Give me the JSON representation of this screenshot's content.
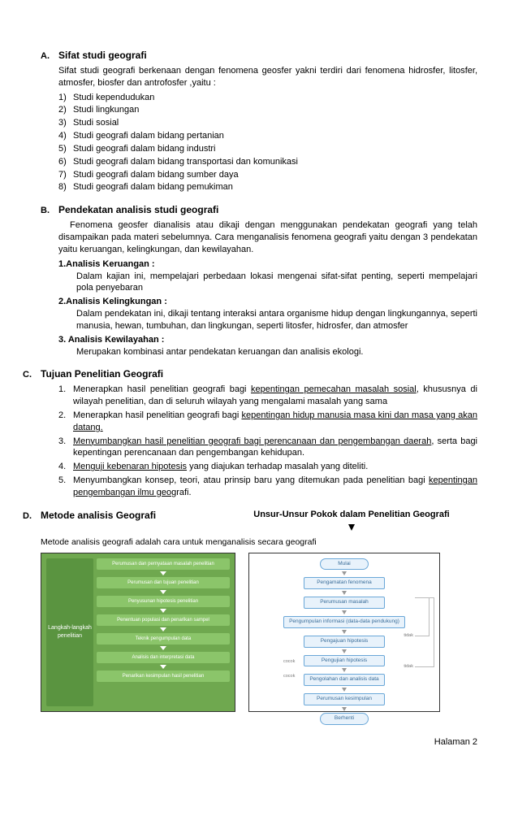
{
  "A": {
    "letter": "A.",
    "title": "Sifat studi geografi",
    "intro": "Sifat studi geografi berkenaan dengan fenomena geosfer yakni terdiri dari fenomena hidrosfer, litosfer, atmosfer, biosfer dan antrofosfer ,yaitu :",
    "items": [
      "Studi kependudukan",
      "Studi lingkungan",
      "Studi sosial",
      "Studi geografi dalam bidang pertanian",
      "Studi geografi dalam bidang industri",
      "Studi geografi dalam bidang transportasi dan komunikasi",
      "Studi geografi dalam bidang sumber daya",
      "Studi geografi dalam bidang pemukiman"
    ]
  },
  "B": {
    "letter": "B.",
    "title": "Pendekatan analisis studi geografi",
    "intro": "Fenomena geosfer dianalisis atau dikaji dengan menggunakan pendekatan geografi yang telah disampaikan pada materi sebelumnya. Cara menganalisis fenomena geografi yaitu dengan 3 pendekatan yaitu keruangan, kelingkungan, dan kewilayahan.",
    "subs": [
      {
        "head": "1.Analisis Keruangan :",
        "body": "Dalam kajian ini, mempelajari perbedaan lokasi mengenai sifat-sifat penting, seperti mempelajari pola penyebaran"
      },
      {
        "head": "2.Analisis Kelingkungan :",
        "body": "Dalam pendekatan ini, dikaji tentang interaksi antara organisme hidup dengan lingkungannya, seperti manusia, hewan, tumbuhan, dan lingkungan, seperti litosfer, hidrosfer, dan atmosfer"
      },
      {
        "head": "3. Analisis Kewilayahan :",
        "body": "Merupakan kombinasi antar pendekatan keruangan dan analisis ekologi."
      }
    ]
  },
  "C": {
    "letter": "C.",
    "title": "Tujuan Penelitian Geografi",
    "items": [
      {
        "pre": "Menerapkan hasil penelitian geografi bagi ",
        "u": "kepentingan pemecahan masalah sosial",
        "post": ", khususnya di wilayah penelitian, dan di seluruh wilayah yang mengalami masalah yang sama"
      },
      {
        "pre": "Menerapkan hasil penelitian geografi bagi ",
        "u": "kepentingan hidup manusia masa kini dan masa yang akan datang.",
        "post": ""
      },
      {
        "pre": "",
        "u": "Menyumbangkan hasil penelitian geografi bagi perencanaan dan pengembangan daerah",
        "post": ", serta bagi kepentingan perencanaan dan pengembangan kehidupan."
      },
      {
        "pre": "",
        "u": "Menguji kebenaran hipotesis",
        "post": " yang diajukan terhadap masalah yang diteliti."
      },
      {
        "pre": "Menyumbangkan konsep, teori, atau prinsip baru yang ditemukan pada penelitian bagi ",
        "u": "kepentingan pengembangan ilmu geo",
        "post": "grafi."
      }
    ]
  },
  "D": {
    "letter": "D.",
    "title": "Metode analisis Geografi",
    "right_title": "Unsur-Unsur Pokok dalam Penelitian Geografi",
    "desc": "Metode analisis geografi adalah cara untuk menganalisis secara geografi",
    "green": {
      "side": "Langkah-langkah penelitian",
      "steps": [
        "Perumusan dan pernyataan masalah penelitian",
        "Perumusan dan tujuan penelitian",
        "Penyusunan hipotesis penelitian",
        "Penentuan populasi dan penarikan sampel",
        "Teknik pengumpulan data",
        "Analisis dan interpretasi data",
        "Penarikan kesimpulan hasil penelitian"
      ]
    },
    "flow": {
      "nodes": [
        "Mulai",
        "Pengamatan fenomena",
        "Perumusan masalah",
        "Pengumpulan informasi (data-data pendukung)",
        "Pengajuan hipotesis",
        "Pengujian hipotesis",
        "Pengolahan dan analisis data",
        "Perumusan kesimpulan",
        "Berhenti"
      ],
      "labels": {
        "cocok": "cocok",
        "tidak": "tidak"
      }
    }
  },
  "footer": "Halaman 2"
}
